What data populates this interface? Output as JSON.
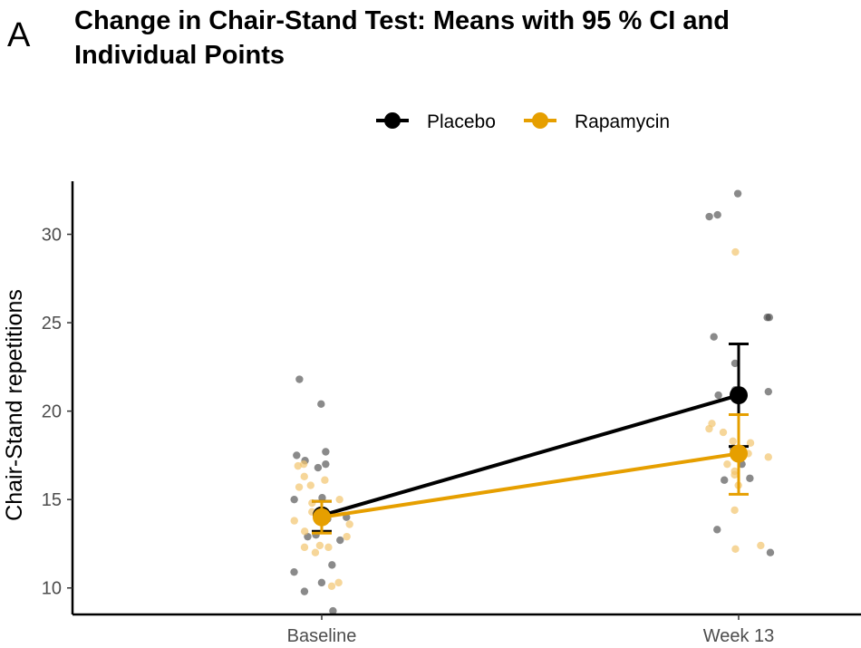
{
  "panel_label": "A",
  "chart_data": {
    "type": "line",
    "title": "Change in Chair-Stand Test: Means with 95 % CI and Individual Points",
    "xlabel": "",
    "ylabel": "Chair-Stand repetitions",
    "categories": [
      "Baseline",
      "Week 13"
    ],
    "ylim": [
      8.5,
      33.0
    ],
    "yticks": [
      10,
      15,
      20,
      25,
      30
    ],
    "grid": false,
    "legend_position": "top",
    "series": [
      {
        "name": "Placebo",
        "color": "#000000",
        "means": [
          14.1,
          20.9
        ],
        "ci_lower": [
          13.2,
          18.0
        ],
        "ci_upper": [
          14.9,
          23.8
        ],
        "points": [
          [
            20.4,
            17.7,
            17.5,
            17.2,
            16.8,
            15.1,
            15.0,
            14.0,
            13.9,
            13.0,
            12.9,
            12.7,
            11.3,
            10.9,
            10.3,
            9.8,
            8.7,
            21.8,
            17.0
          ],
          [
            32.3,
            31.1,
            31.0,
            25.3,
            25.3,
            24.2,
            22.7,
            21.1,
            20.9,
            17.9,
            17.0,
            16.2,
            16.1,
            13.3,
            12.0,
            21.2
          ]
        ]
      },
      {
        "name": "Rapamycin",
        "color": "#E69F00",
        "means": [
          14.0,
          17.6
        ],
        "ci_lower": [
          13.1,
          15.3
        ],
        "ci_upper": [
          14.9,
          19.8
        ],
        "points": [
          [
            16.3,
            16.1,
            15.8,
            15.7,
            15.0,
            14.8,
            14.3,
            13.8,
            13.6,
            13.2,
            12.9,
            12.4,
            12.3,
            12.3,
            12.0,
            10.3,
            10.1,
            16.9,
            17.0
          ],
          [
            29.0,
            19.3,
            19.0,
            18.3,
            18.2,
            17.6,
            17.4,
            17.0,
            16.4,
            15.8,
            14.4,
            12.4,
            12.2,
            16.6,
            18.8
          ]
        ]
      }
    ]
  }
}
